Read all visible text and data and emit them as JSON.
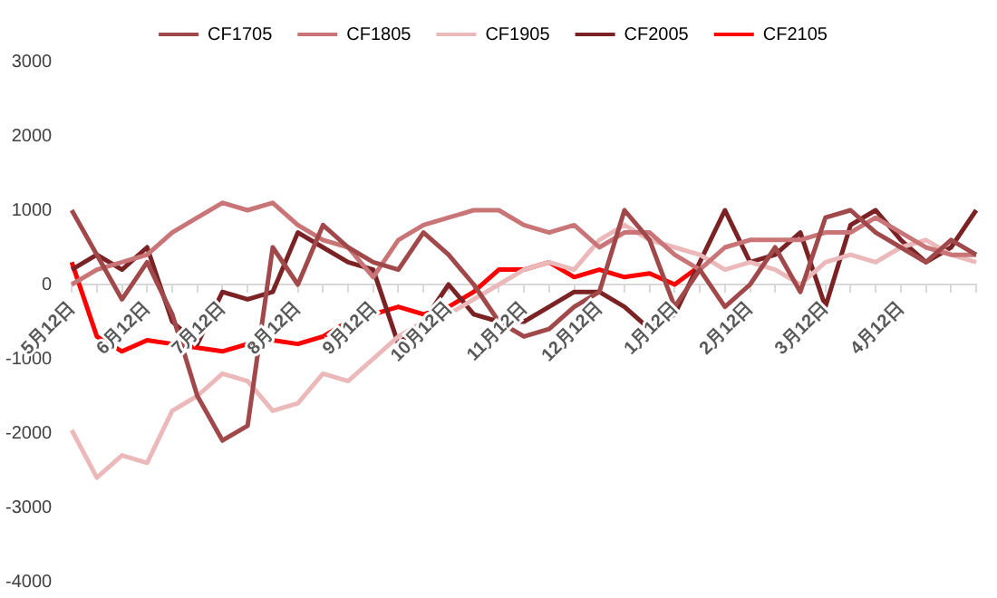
{
  "chart_data": {
    "type": "line",
    "categories": [
      "5月12日",
      null,
      null,
      "6月12日",
      null,
      null,
      "7月12日",
      null,
      null,
      "8月12日",
      null,
      null,
      "9月12日",
      null,
      null,
      "10月12日",
      null,
      null,
      "11月12日",
      null,
      null,
      "12月12日",
      null,
      null,
      "1月12日",
      null,
      null,
      "2月12日",
      null,
      null,
      "3月12日",
      null,
      null,
      "4月12日",
      null,
      null,
      null
    ],
    "series": [
      {
        "name": "CF1705",
        "color": "#a0484a",
        "values": [
          1000,
          400,
          -200,
          300,
          -400,
          -1500,
          -2100,
          -1900,
          500,
          0,
          800,
          500,
          300,
          200,
          700,
          400,
          0,
          -500,
          -700,
          -600,
          -300,
          -100,
          1000,
          600,
          -300,
          200,
          -300,
          0,
          500,
          -100,
          900,
          1000,
          700,
          500,
          300,
          600,
          400
        ]
      },
      {
        "name": "CF1805",
        "color": "#c97476",
        "values": [
          0,
          200,
          300,
          400,
          700,
          900,
          1100,
          1000,
          1100,
          800,
          600,
          500,
          100,
          600,
          800,
          900,
          1000,
          1000,
          800,
          700,
          800,
          500,
          700,
          700,
          400,
          200,
          500,
          600,
          600,
          600,
          700,
          700,
          900,
          700,
          500,
          400,
          400
        ]
      },
      {
        "name": "CF1905",
        "color": "#ebb9b9",
        "values": [
          -1960,
          -2600,
          -2300,
          -2400,
          -1700,
          -1500,
          -1200,
          -1300,
          -1700,
          -1600,
          -1200,
          -1300,
          -1000,
          -700,
          -500,
          -400,
          -200,
          0,
          200,
          300,
          200,
          600,
          800,
          600,
          500,
          400,
          200,
          300,
          200,
          0,
          300,
          400,
          300,
          500,
          600,
          400,
          300
        ]
      },
      {
        "name": "CF2005",
        "color": "#7b2224",
        "values": [
          200,
          400,
          200,
          500,
          -500,
          -800,
          -100,
          -200,
          -100,
          700,
          500,
          300,
          200,
          -800,
          -500,
          0,
          -400,
          -500,
          -500,
          -300,
          -100,
          -100,
          -300,
          -600,
          -400,
          300,
          1000,
          300,
          400,
          700,
          -300,
          800,
          1000,
          600,
          300,
          500,
          1000
        ]
      },
      {
        "name": "CF2105",
        "color": "#ff0000",
        "values": [
          300,
          -700,
          -900,
          -750,
          -800,
          -850,
          -900,
          -800,
          -750,
          -800,
          -700,
          -500,
          -400,
          -300,
          -400,
          -300,
          -100,
          200,
          200,
          300,
          100,
          200,
          100,
          150,
          0,
          250,
          null,
          null,
          null,
          null,
          null,
          null,
          null,
          null,
          null,
          null,
          null
        ]
      }
    ],
    "ylim": [
      -4000,
      3000
    ],
    "yticks": [
      -4000,
      -3000,
      -2000,
      -1000,
      0,
      1000,
      2000,
      3000
    ],
    "grid": false,
    "legend": "top",
    "marker": "none",
    "line_style": "solid"
  }
}
